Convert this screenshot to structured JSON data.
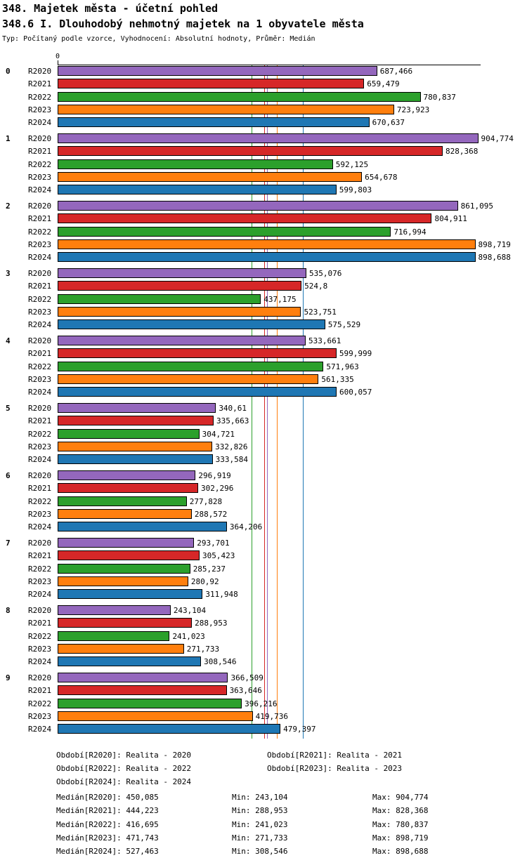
{
  "header": {
    "title": "348. Majetek města - účetní pohled",
    "subtitle": "348.6 I. Dlouhodobý nehmotný majetek na 1 obyvatele města",
    "meta": "Typ: Počítaný podle vzorce, Vyhodnocení: Absolutní hodnoty, Průměr: Medián"
  },
  "chart_data": {
    "type": "bar",
    "orientation": "horizontal",
    "title": "348.6 I. Dlouhodobý nehmotný majetek na 1 obyvatele města",
    "xlabel": "",
    "ylabel": "",
    "xlim": [
      0,
      910
    ],
    "grid": false,
    "axis_zero_label": "0",
    "categories": [
      "0",
      "1",
      "2",
      "3",
      "4",
      "5",
      "6",
      "7",
      "8",
      "9"
    ],
    "series": [
      {
        "name": "R2020",
        "color": "#9467bd",
        "values": [
          687.466,
          904.774,
          861.095,
          535.076,
          533.661,
          340.61,
          296.919,
          293.701,
          243.104,
          366.509
        ],
        "display": [
          "687,466",
          "904,774",
          "861,095",
          "535,076",
          "533,661",
          "340,61",
          "296,919",
          "293,701",
          "243,104",
          "366,509"
        ],
        "median_value": 450.085,
        "median_display": "450,085"
      },
      {
        "name": "R2021",
        "color": "#d62728",
        "values": [
          659.479,
          828.368,
          804.911,
          524.8,
          599.999,
          335.663,
          302.296,
          305.423,
          288.953,
          363.646
        ],
        "display": [
          "659,479",
          "828,368",
          "804,911",
          "524,8",
          "599,999",
          "335,663",
          "302,296",
          "305,423",
          "288,953",
          "363,646"
        ],
        "median_value": 444.223,
        "median_display": "444,223"
      },
      {
        "name": "R2022",
        "color": "#2ca02c",
        "values": [
          780.837,
          592.125,
          716.994,
          437.175,
          571.963,
          304.721,
          277.828,
          285.237,
          241.023,
          396.216
        ],
        "display": [
          "780,837",
          "592,125",
          "716,994",
          "437,175",
          "571,963",
          "304,721",
          "277,828",
          "285,237",
          "241,023",
          "396,216"
        ],
        "median_value": 416.695,
        "median_display": "416,695"
      },
      {
        "name": "R2023",
        "color": "#ff7f0e",
        "values": [
          723.923,
          654.678,
          898.719,
          523.751,
          561.335,
          332.826,
          288.572,
          280.92,
          271.733,
          419.736
        ],
        "display": [
          "723,923",
          "654,678",
          "898,719",
          "523,751",
          "561,335",
          "332,826",
          "288,572",
          "280,92",
          "271,733",
          "419,736"
        ],
        "median_value": 471.743,
        "median_display": "471,743"
      },
      {
        "name": "R2024",
        "color": "#1f77b4",
        "values": [
          670.637,
          599.803,
          898.688,
          575.529,
          600.057,
          333.584,
          364.206,
          311.948,
          308.546,
          479.397
        ],
        "display": [
          "670,637",
          "599,803",
          "898,688",
          "575,529",
          "600,057",
          "333,584",
          "364,206",
          "311,948",
          "308,546",
          "479,397"
        ],
        "median_value": 527.463,
        "median_display": "527,463"
      }
    ],
    "legend_position": "bottom"
  },
  "footer": {
    "periods": [
      "Období[R2020]: Realita - 2020",
      "Období[R2021]: Realita - 2021",
      "Období[R2022]: Realita - 2022",
      "Období[R2023]: Realita - 2023",
      "Období[R2024]: Realita - 2024"
    ],
    "stats": [
      {
        "median": "Medián[R2020]: 450,085",
        "min": "Min: 243,104",
        "max": "Max: 904,774"
      },
      {
        "median": "Medián[R2021]: 444,223",
        "min": "Min: 288,953",
        "max": "Max: 828,368"
      },
      {
        "median": "Medián[R2022]: 416,695",
        "min": "Min: 241,023",
        "max": "Max: 780,837"
      },
      {
        "median": "Medián[R2023]: 471,743",
        "min": "Min: 271,733",
        "max": "Max: 898,719"
      },
      {
        "median": "Medián[R2024]: 527,463",
        "min": "Min: 308,546",
        "max": "Max: 898,688"
      }
    ]
  }
}
